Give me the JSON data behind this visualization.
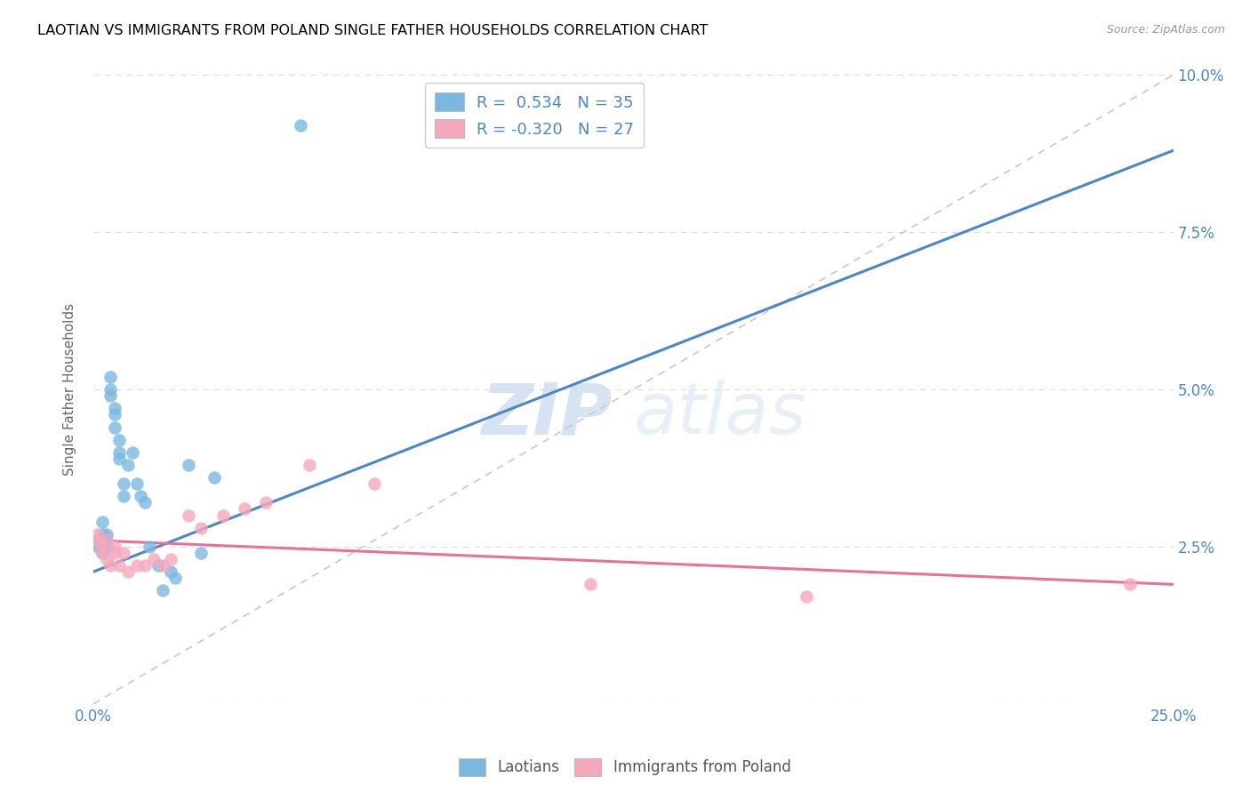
{
  "title": "LAOTIAN VS IMMIGRANTS FROM POLAND SINGLE FATHER HOUSEHOLDS CORRELATION CHART",
  "source": "Source: ZipAtlas.com",
  "ylabel": "Single Father Households",
  "x_min": 0.0,
  "x_max": 0.25,
  "y_min": 0.0,
  "y_max": 0.1,
  "x_ticks": [
    0.0,
    0.05,
    0.1,
    0.15,
    0.2,
    0.25
  ],
  "x_tick_labels": [
    "0.0%",
    "",
    "",
    "",
    "",
    "25.0%"
  ],
  "y_ticks": [
    0.0,
    0.025,
    0.05,
    0.075,
    0.1
  ],
  "y_tick_labels_right": [
    "",
    "2.5%",
    "5.0%",
    "7.5%",
    "10.0%"
  ],
  "blue_color": "#7ab8e0",
  "pink_color": "#f5a8bc",
  "blue_line_color": "#4a86c8",
  "pink_line_color": "#e8709a",
  "ref_line_color": "#c8c8c8",
  "legend_text_color": "#4a86c8",
  "tick_color": "#4a86c8",
  "R_blue": 0.534,
  "N_blue": 35,
  "R_pink": -0.32,
  "N_pink": 27,
  "watermark_zip": "ZIP",
  "watermark_atlas": "atlas",
  "blue_x": [
    0.001,
    0.001,
    0.002,
    0.002,
    0.002,
    0.002,
    0.003,
    0.003,
    0.003,
    0.003,
    0.004,
    0.004,
    0.004,
    0.005,
    0.005,
    0.005,
    0.006,
    0.006,
    0.006,
    0.007,
    0.007,
    0.008,
    0.009,
    0.01,
    0.011,
    0.012,
    0.013,
    0.015,
    0.016,
    0.018,
    0.019,
    0.022,
    0.025,
    0.028,
    0.048
  ],
  "blue_y": [
    0.026,
    0.025,
    0.029,
    0.027,
    0.025,
    0.024,
    0.027,
    0.026,
    0.026,
    0.025,
    0.052,
    0.05,
    0.049,
    0.047,
    0.046,
    0.044,
    0.042,
    0.04,
    0.039,
    0.035,
    0.033,
    0.038,
    0.04,
    0.035,
    0.033,
    0.032,
    0.025,
    0.022,
    0.018,
    0.021,
    0.02,
    0.038,
    0.024,
    0.036,
    0.092
  ],
  "pink_x": [
    0.001,
    0.001,
    0.002,
    0.002,
    0.003,
    0.003,
    0.004,
    0.005,
    0.005,
    0.006,
    0.007,
    0.008,
    0.01,
    0.012,
    0.014,
    0.016,
    0.018,
    0.022,
    0.025,
    0.03,
    0.035,
    0.04,
    0.05,
    0.065,
    0.115,
    0.165,
    0.24
  ],
  "pink_y": [
    0.027,
    0.026,
    0.025,
    0.024,
    0.026,
    0.023,
    0.022,
    0.025,
    0.024,
    0.022,
    0.024,
    0.021,
    0.022,
    0.022,
    0.023,
    0.022,
    0.023,
    0.03,
    0.028,
    0.03,
    0.031,
    0.032,
    0.038,
    0.035,
    0.019,
    0.017,
    0.019
  ],
  "blue_line_x0": 0.0,
  "blue_line_y0": 0.021,
  "blue_line_x1": 0.25,
  "blue_line_y1": 0.088,
  "pink_line_x0": 0.0,
  "pink_line_y0": 0.026,
  "pink_line_x1": 0.25,
  "pink_line_y1": 0.019
}
